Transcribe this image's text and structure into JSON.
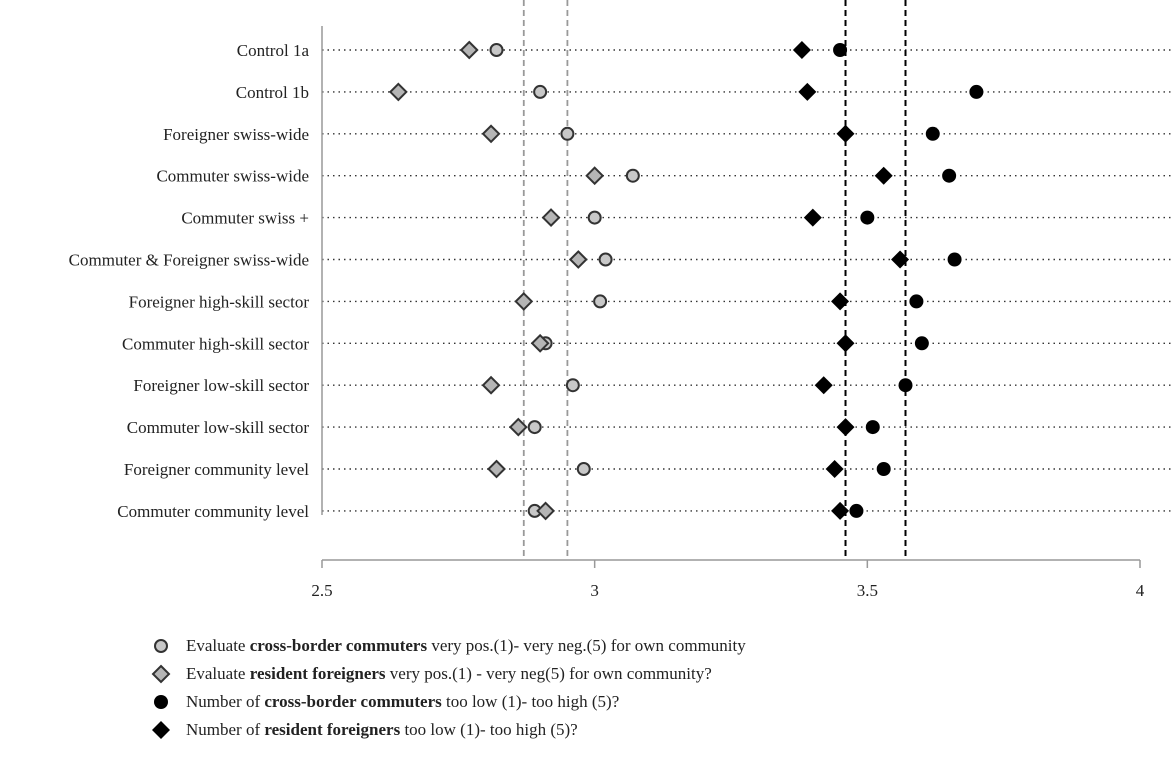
{
  "chart_data": {
    "type": "scatter",
    "title": "",
    "xlabel": "",
    "ylabel": "",
    "xlim": [
      2.5,
      4
    ],
    "x_ticks": [
      "2.5",
      "3",
      "3.5",
      "4"
    ],
    "grid": "dotted horizontal guide lines per category",
    "legend_position": "bottom-left",
    "categories": [
      "Control 1a",
      "Control 1b",
      "Foreigner swiss-wide",
      "Commuter swiss-wide",
      "Commuter swiss +",
      "Commuter & Foreigner swiss-wide",
      "Foreigner high-skill sector",
      "Commuter high-skill sector",
      "Foreigner low-skill sector",
      "Commuter low-skill sector",
      "Foreigner community level",
      "Commuter community level"
    ],
    "series": [
      {
        "key": "eval_commuters",
        "marker": "circle",
        "fill": "#c8c8c8",
        "stroke": "#333333",
        "values": [
          2.82,
          2.9,
          2.95,
          3.07,
          3.0,
          3.02,
          3.01,
          2.91,
          2.96,
          2.89,
          2.98,
          2.89
        ]
      },
      {
        "key": "eval_foreigners",
        "marker": "diamond",
        "fill": "#b5b5b5",
        "stroke": "#333333",
        "values": [
          2.77,
          2.64,
          2.81,
          3.0,
          2.92,
          2.97,
          2.87,
          2.9,
          2.81,
          2.86,
          2.82,
          2.91
        ]
      },
      {
        "key": "num_commuters",
        "marker": "circle",
        "fill": "#000000",
        "stroke": "#000000",
        "values": [
          3.45,
          3.7,
          3.62,
          3.65,
          3.5,
          3.66,
          3.59,
          3.6,
          3.57,
          3.51,
          3.53,
          3.48
        ]
      },
      {
        "key": "num_foreigners",
        "marker": "diamond",
        "fill": "#000000",
        "stroke": "#000000",
        "values": [
          3.38,
          3.39,
          3.46,
          3.53,
          3.4,
          3.56,
          3.45,
          3.46,
          3.42,
          3.46,
          3.44,
          3.45
        ]
      }
    ],
    "reference_lines": [
      {
        "x": 2.87,
        "color": "#999999",
        "style": "dashed"
      },
      {
        "x": 2.95,
        "color": "#999999",
        "style": "dashed"
      },
      {
        "x": 3.46,
        "color": "#000000",
        "style": "dashed"
      },
      {
        "x": 3.57,
        "color": "#000000",
        "style": "dashed"
      }
    ]
  },
  "legend": [
    {
      "marker": "gray-circle",
      "pre": "Evaluate  ",
      "bold": "cross-border commuters",
      "post": "  very pos.(1)- very neg.(5) for own community"
    },
    {
      "marker": "gray-diamond",
      "pre": "Evaluate  ",
      "bold": "resident foreigners",
      "post": " very pos.(1) - very neg(5) for own community?"
    },
    {
      "marker": "black-circle",
      "pre": "Number of ",
      "bold": "cross-border commuters",
      "post": " too low (1)- too high (5)?"
    },
    {
      "marker": "black-diamond",
      "pre": "Number of ",
      "bold": "resident foreigners",
      "post": " too low (1)- too high (5)?"
    }
  ]
}
